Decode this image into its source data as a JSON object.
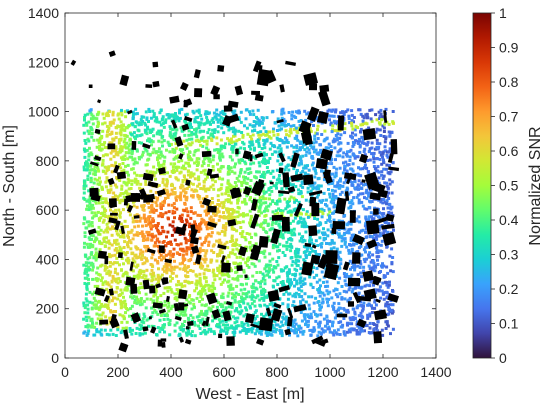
{
  "chart_data": {
    "type": "heatmap",
    "xlabel": "West - East [m]",
    "ylabel": "North - South [m]",
    "colorbar_label": "Normalized SNR",
    "xlim": [
      0,
      1400
    ],
    "ylim": [
      0,
      1400
    ],
    "xticks": [
      0,
      200,
      400,
      600,
      800,
      1000,
      1200,
      1400
    ],
    "yticks": [
      0,
      200,
      400,
      600,
      800,
      1000,
      1200,
      1400
    ],
    "clim": [
      0,
      1
    ],
    "cticks": [
      0,
      0.1,
      0.2,
      0.3,
      0.4,
      0.5,
      0.6,
      0.7,
      0.8,
      0.9,
      1
    ],
    "colormap": "turbo",
    "grid": false,
    "coverage_region": {
      "x": [
        70,
        1240
      ],
      "y": [
        90,
        1010
      ]
    },
    "peak": {
      "x": 420,
      "y": 520,
      "value": 0.95
    },
    "colormap_stops": [
      "#30123b",
      "#4145ab",
      "#4675ed",
      "#39a2fc",
      "#1bcfd4",
      "#24eca6",
      "#61fc6c",
      "#a4fc3b",
      "#d1e834",
      "#f3c63a",
      "#fe9b2d",
      "#f36315",
      "#d93806",
      "#b11901",
      "#7a0402"
    ],
    "building_color": "#000000"
  }
}
